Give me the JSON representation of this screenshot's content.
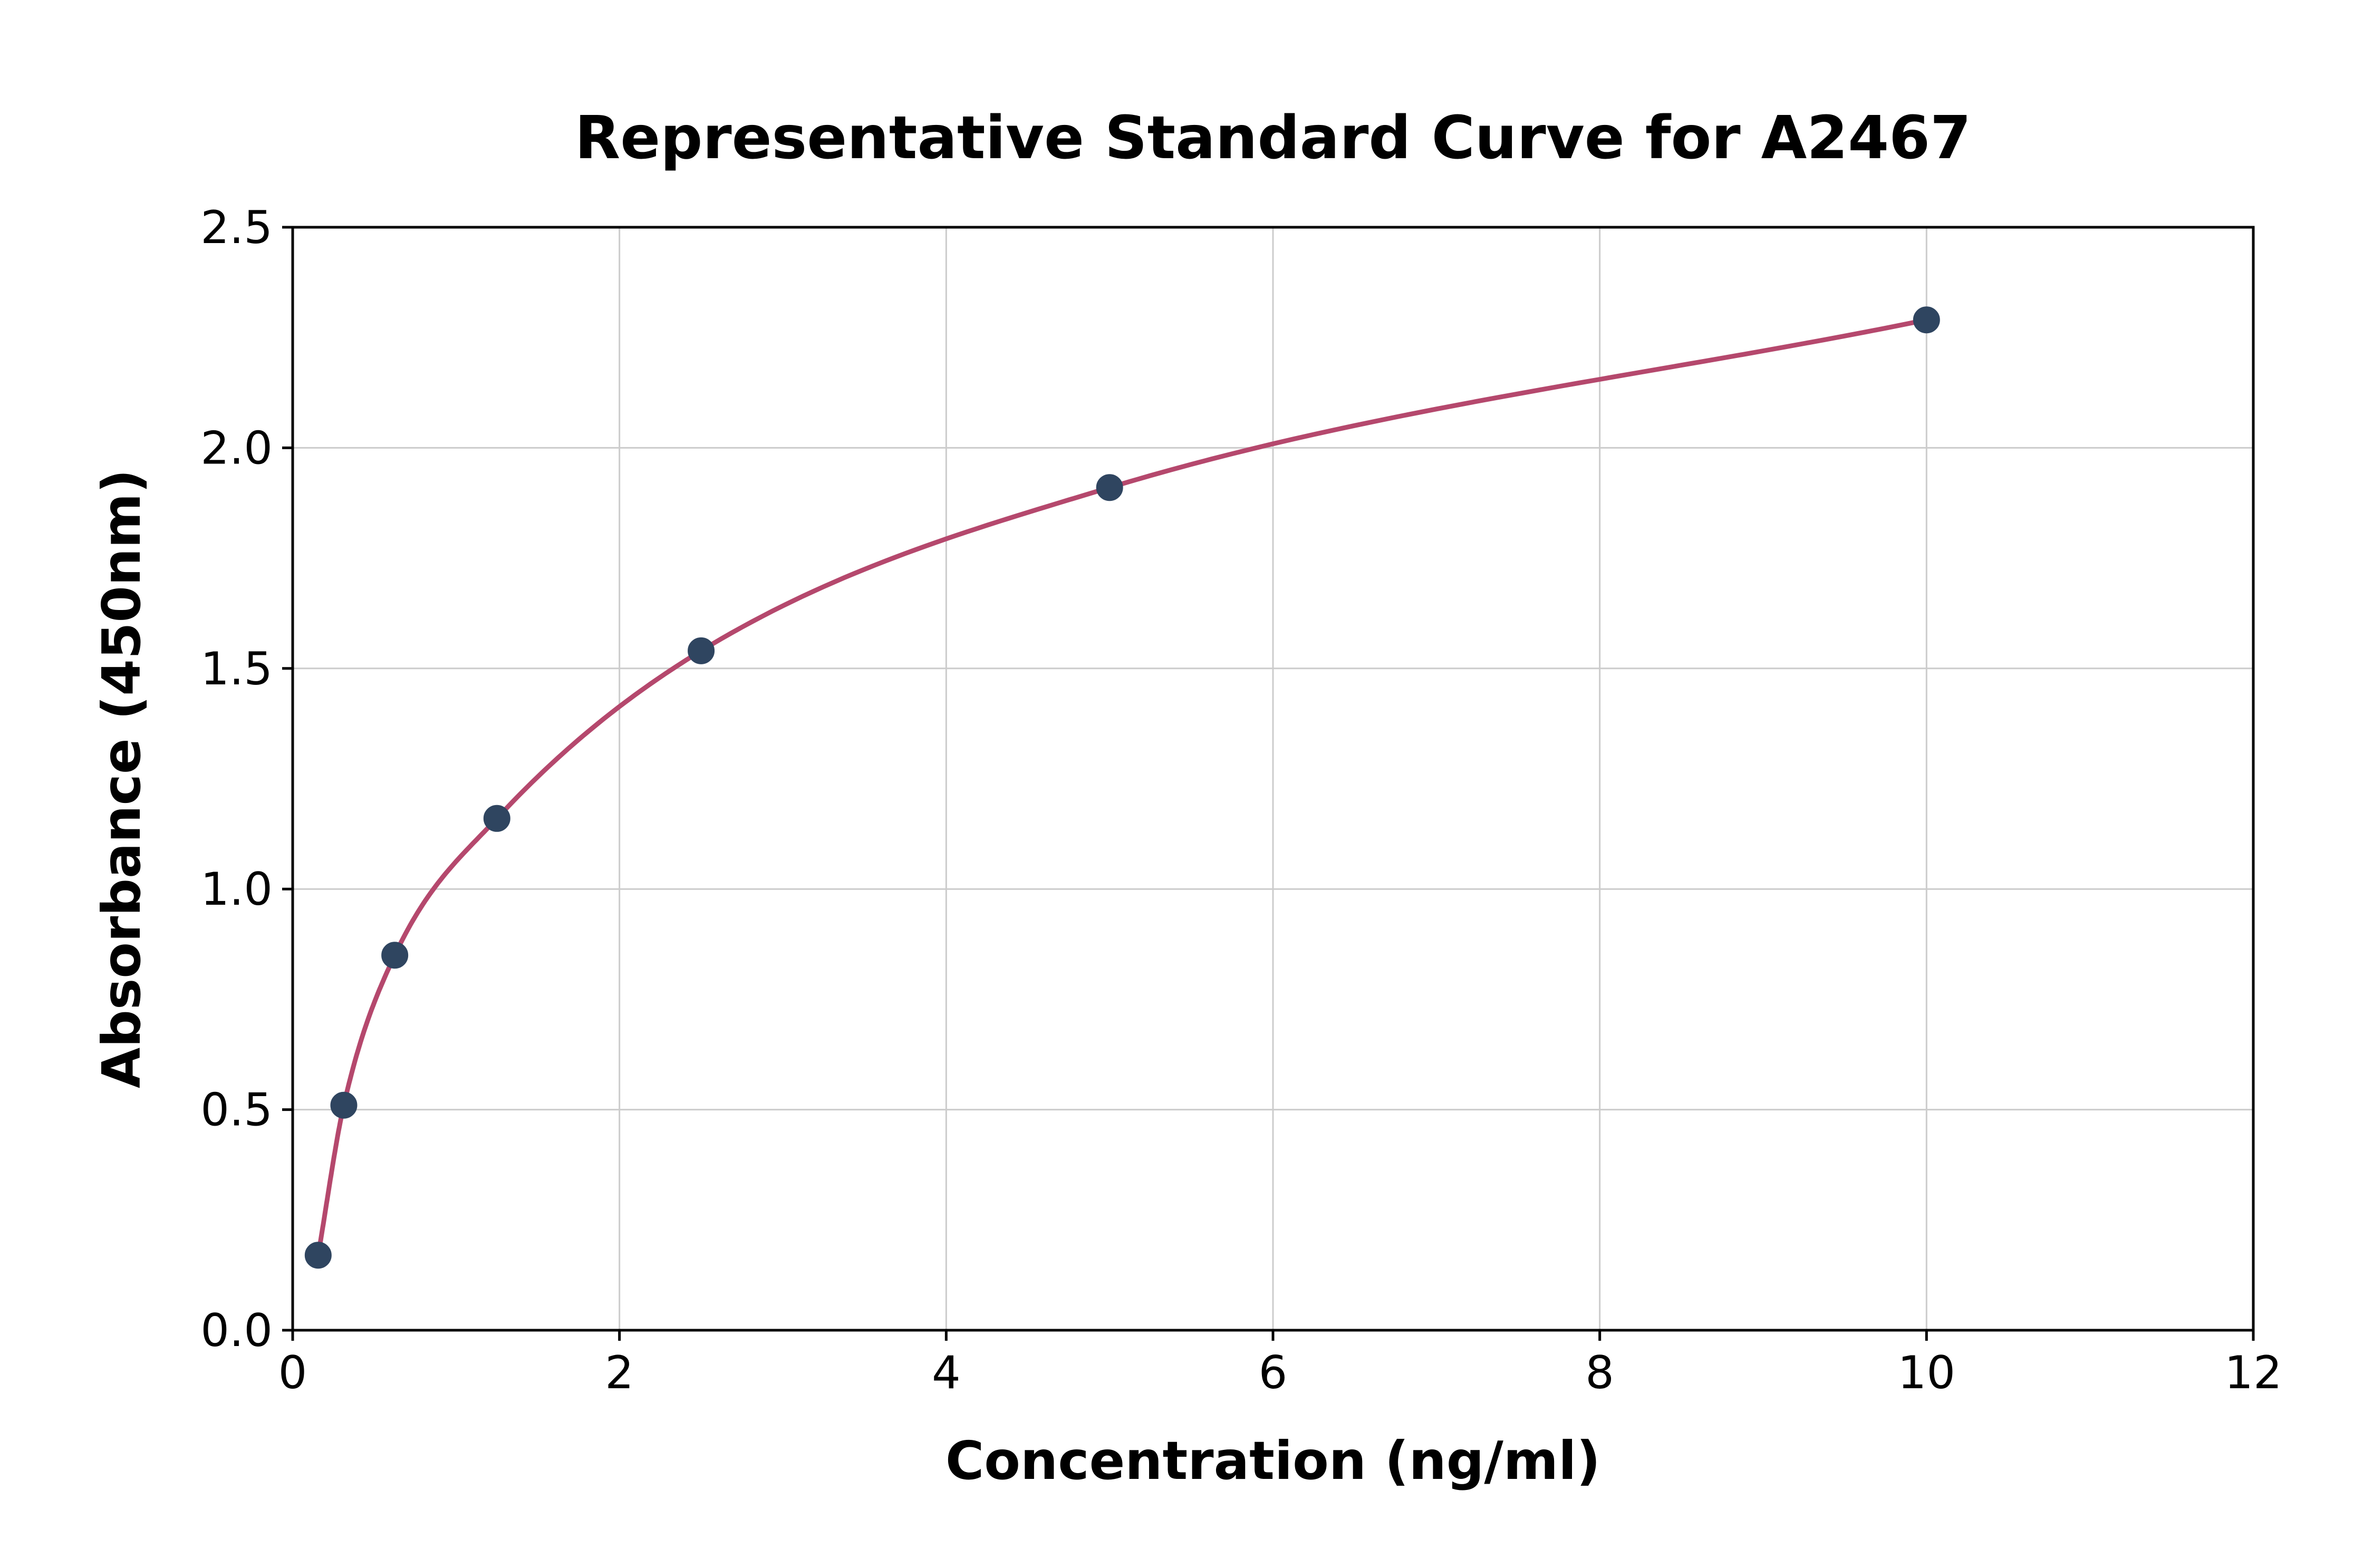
{
  "chart_data": {
    "type": "line",
    "title": "Representative Standard Curve for A2467",
    "xlabel": "Concentration (ng/ml)",
    "ylabel": "Absorbance (450nm)",
    "x": [
      0.156,
      0.313,
      0.625,
      1.25,
      2.5,
      5,
      10
    ],
    "y": [
      0.17,
      0.51,
      0.85,
      1.16,
      1.54,
      1.91,
      2.29
    ],
    "xlim": [
      0,
      12
    ],
    "ylim": [
      0,
      2.5
    ],
    "xticks": [
      0,
      2,
      4,
      6,
      8,
      10,
      12
    ],
    "xtick_labels": [
      "0",
      "2",
      "4",
      "6",
      "8",
      "10",
      "12"
    ],
    "yticks": [
      0,
      0.5,
      1.0,
      1.5,
      2.0,
      2.5
    ],
    "ytick_labels": [
      "0.0",
      "0.5",
      "1.0",
      "1.5",
      "2.0",
      "2.5"
    ],
    "grid": true,
    "legend": "none",
    "colors": {
      "curve": "#b5486d",
      "marker": "#2f4560",
      "grid": "#cccccc",
      "spine": "#000000",
      "background": "#ffffff"
    }
  }
}
